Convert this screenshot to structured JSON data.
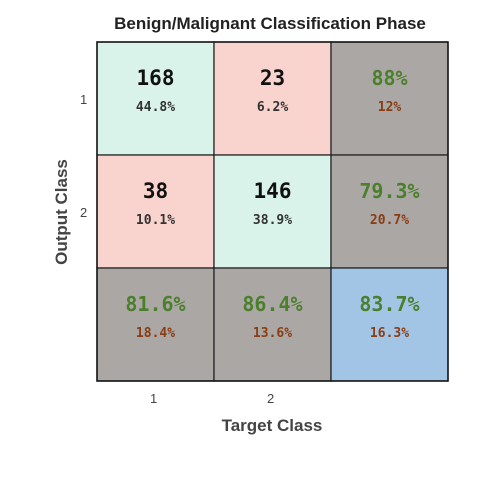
{
  "chart_data": {
    "type": "table",
    "title": "Benign/Malignant Classification Phase",
    "xlabel": "Target Class",
    "ylabel": "Output Class",
    "x_ticks": [
      "1",
      "2"
    ],
    "y_ticks": [
      "1",
      "2"
    ],
    "rows": [
      [
        {
          "count": "168",
          "percent": "44.8%",
          "kind": "correct"
        },
        {
          "count": "23",
          "percent": "6.2%",
          "kind": "wrong"
        },
        {
          "top": "88%",
          "bottom": "12%",
          "kind": "summary"
        }
      ],
      [
        {
          "count": "38",
          "percent": "10.1%",
          "kind": "wrong"
        },
        {
          "count": "146",
          "percent": "38.9%",
          "kind": "correct"
        },
        {
          "top": "79.3%",
          "bottom": "20.7%",
          "kind": "summary"
        }
      ],
      [
        {
          "top": "81.6%",
          "bottom": "18.4%",
          "kind": "summary"
        },
        {
          "top": "86.4%",
          "bottom": "13.6%",
          "kind": "summary"
        },
        {
          "top": "83.7%",
          "bottom": "16.3%",
          "kind": "overall"
        }
      ]
    ],
    "colors": {
      "correct": "#d9f2ea",
      "wrong": "#f9d3ce",
      "summary": "#aba7a5",
      "overall": "#a3c5e5",
      "good_text": "#4b7f2c",
      "bad_text": "#8a3c12",
      "count_text": "#111111",
      "percent_text": "#333333"
    }
  }
}
